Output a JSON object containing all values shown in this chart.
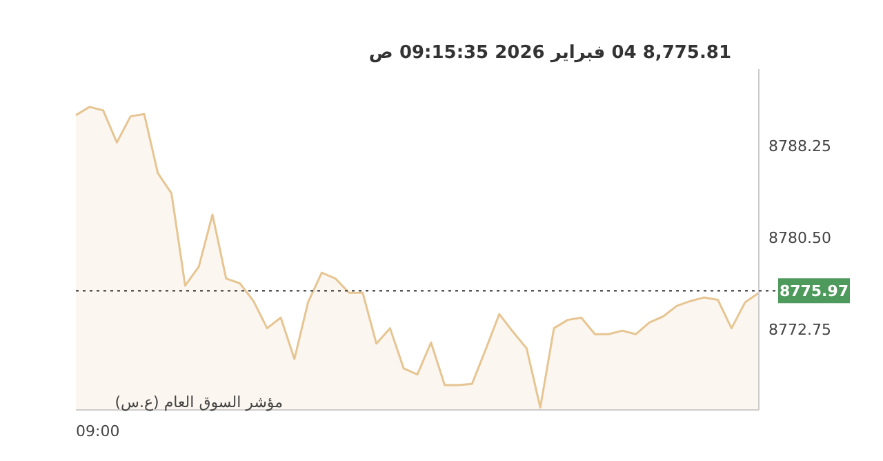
{
  "chart_data": {
    "type": "area",
    "title": "8,775.81   04 فبراير 2026   09:15:35 ص",
    "annotations": [
      "مؤشر السوق العام (ع.س)",
      "09:00"
    ],
    "categories": [
      null,
      null,
      null,
      null,
      null,
      null,
      null,
      null,
      null,
      null,
      null,
      null,
      null,
      null,
      null,
      null,
      null,
      null,
      null,
      null,
      null,
      null,
      null,
      null,
      null,
      null,
      null,
      null,
      null,
      null,
      null,
      null,
      null,
      null,
      null,
      null,
      null,
      null,
      null,
      null,
      null,
      null,
      null,
      null,
      null,
      null,
      null,
      null,
      null,
      null,
      null
    ],
    "values": [
      8790.8,
      8791.5,
      8791.2,
      8788.5,
      8790.7,
      8790.9,
      8785.9,
      8784.2,
      8776.4,
      8778.0,
      8782.4,
      8777.0,
      8776.6,
      8775.1,
      8772.8,
      8773.7,
      8770.2,
      8775.0,
      8777.5,
      8777.0,
      8775.8,
      8775.8,
      8771.5,
      8772.8,
      8769.4,
      8768.9,
      8771.6,
      8768.0,
      8768.0,
      8768.1,
      8771.0,
      8774.0,
      8772.5,
      8771.1,
      8766.1,
      8772.8,
      8773.5,
      8773.7,
      8772.3,
      8772.3,
      8772.6,
      8772.3,
      8773.3,
      8773.8,
      8774.7,
      8775.1,
      8775.4,
      8775.2,
      8772.8,
      8775.0,
      8775.8
    ],
    "color": "#e6c592",
    "ylim": [
      8765.9,
      8794.7
    ],
    "yticks": [
      {
        "value": 8772.75,
        "label": "8772.75"
      },
      {
        "value": 8780.5,
        "label": "8780.50"
      },
      {
        "value": 8788.25,
        "label": "8788.25"
      }
    ],
    "ref_lines": [
      {
        "axis": "y",
        "value": 8775.97,
        "label": "8775.97",
        "line_style": "dotted"
      }
    ]
  }
}
